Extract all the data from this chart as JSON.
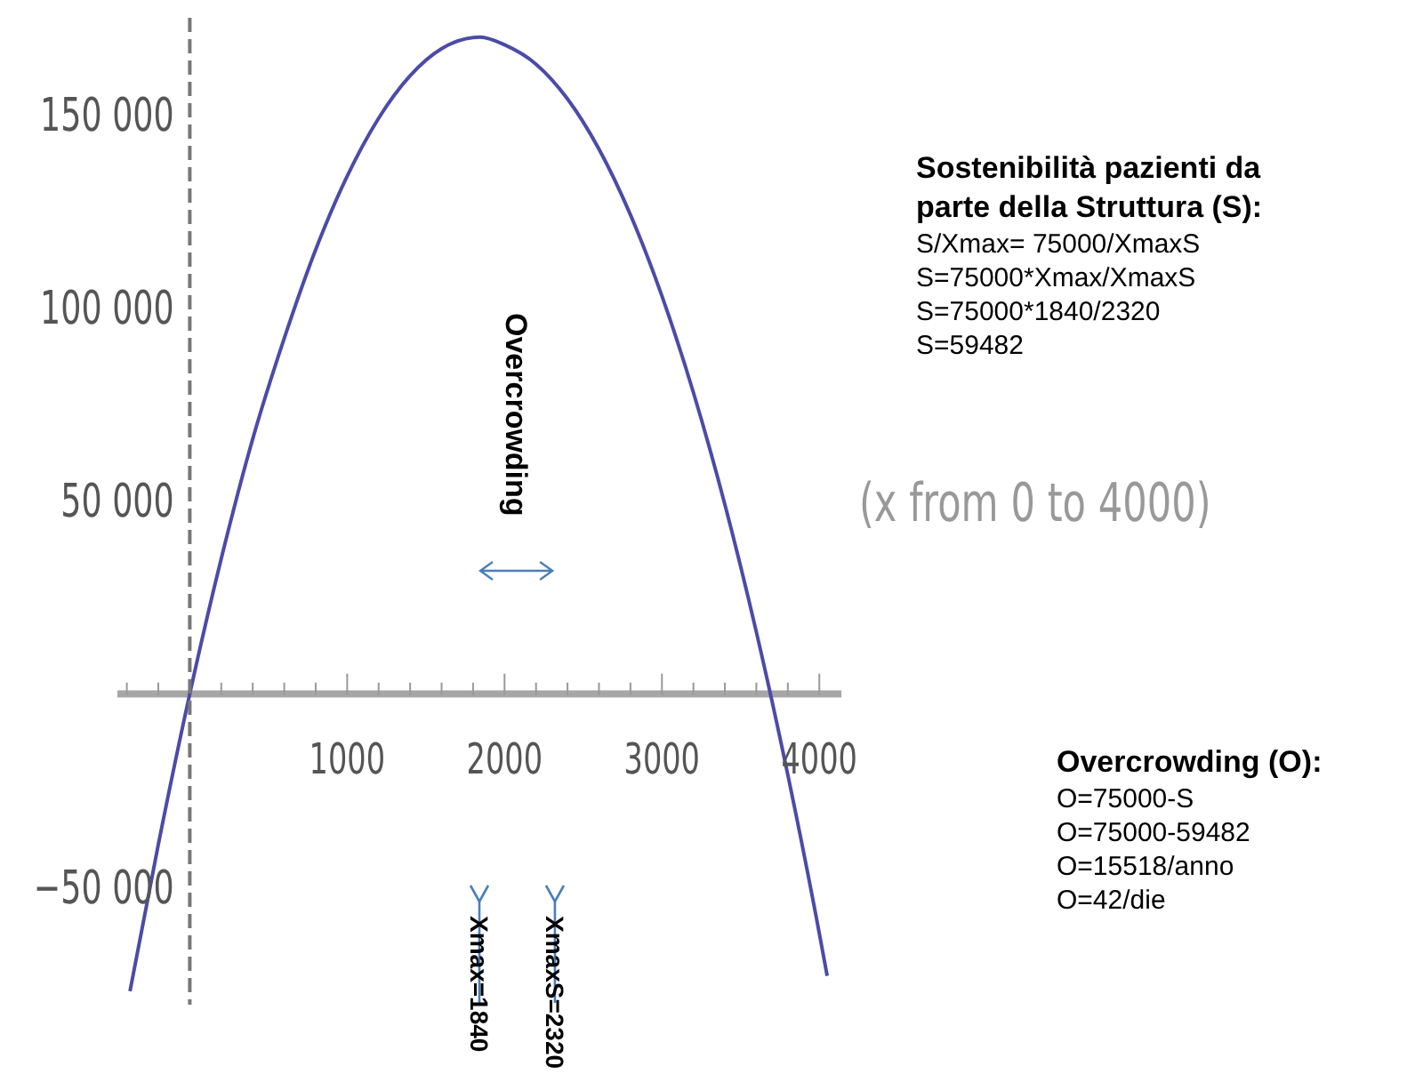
{
  "chart_data": {
    "type": "line",
    "x": [
      -380,
      -200,
      0,
      200,
      400,
      600,
      800,
      1000,
      1200,
      1400,
      1600,
      1845,
      2000,
      2200,
      2400,
      2600,
      2800,
      3000,
      3200,
      3400,
      3600,
      3800,
      4000,
      4050
    ],
    "series": [
      {
        "color": "#4b4ba8",
        "values": [
          -77000,
          -39000,
          0,
          35000,
          66000,
          92000,
          115000,
          134000,
          149000,
          160000,
          167000,
          170000,
          168000,
          163000,
          154000,
          141000,
          124000,
          103000,
          78000,
          49000,
          16000,
          -21000,
          -62000,
          -73000
        ]
      }
    ],
    "xlim": [
      -460,
      4140
    ],
    "ylim": [
      -80000,
      175000
    ],
    "xticks": [
      {
        "value": -400,
        "label": null
      },
      {
        "value": -200,
        "label": null
      },
      {
        "value": 200,
        "label": null
      },
      {
        "value": 400,
        "label": null
      },
      {
        "value": 600,
        "label": null
      },
      {
        "value": 800,
        "label": null
      },
      1000,
      {
        "value": 1200,
        "label": null
      },
      {
        "value": 1400,
        "label": null
      },
      {
        "value": 1600,
        "label": null
      },
      {
        "value": 1800,
        "label": null
      },
      2000,
      {
        "value": 2200,
        "label": null
      },
      {
        "value": 2400,
        "label": null
      },
      {
        "value": 2600,
        "label": null
      },
      {
        "value": 2800,
        "label": null
      },
      3000,
      {
        "value": 3200,
        "label": null
      },
      {
        "value": 3400,
        "label": null
      },
      {
        "value": 3600,
        "label": null
      },
      {
        "value": 3800,
        "label": null
      },
      4000
    ],
    "yticks": [
      {
        "value": -50000,
        "label": "−50 000"
      },
      {
        "value": 50000,
        "label": "50 000"
      },
      {
        "value": 100000,
        "label": "100 000"
      },
      {
        "value": 150000,
        "label": "150 000"
      }
    ],
    "ref_lines": [
      {
        "axis": "x",
        "value": 0,
        "color": "#777777",
        "line_style": "dashed"
      },
      {
        "axis": "x",
        "value": 1840,
        "label": "Xmax=1840",
        "color": "#4a7ebb"
      },
      {
        "axis": "x",
        "value": 2320,
        "label": "XmaxS=2320",
        "color": "#4a7ebb"
      }
    ],
    "annotations": [
      "Overcrowding",
      "(x from 0 to 4000)",
      "Sostenibilità pazienti da parte della Struttura (S):",
      "S/Xmax= 75000/XmaxS",
      "S=75000*Xmax/XmaxS",
      "S=75000*1840/2320",
      "S=59482",
      "Overcrowding (O):",
      "O=75000-S",
      "O=75000-59482",
      "O=15518/anno",
      "O=42/die"
    ],
    "grid": false,
    "legend": false,
    "marker": "none",
    "line_style": "solid"
  }
}
